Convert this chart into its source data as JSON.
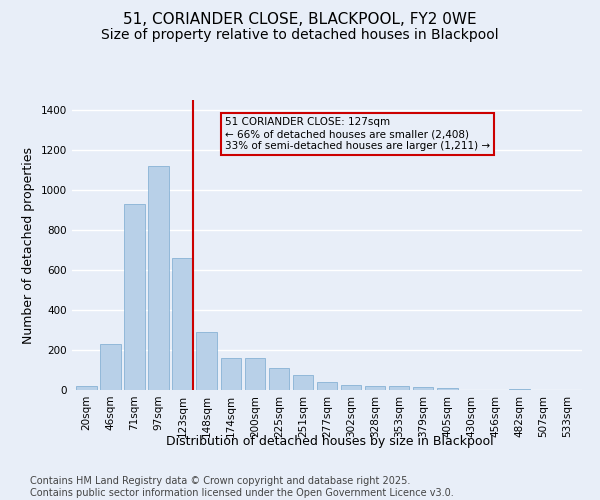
{
  "title": "51, CORIANDER CLOSE, BLACKPOOL, FY2 0WE",
  "subtitle": "Size of property relative to detached houses in Blackpool",
  "xlabel": "Distribution of detached houses by size in Blackpool",
  "ylabel": "Number of detached properties",
  "categories": [
    "20sqm",
    "46sqm",
    "71sqm",
    "97sqm",
    "123sqm",
    "148sqm",
    "174sqm",
    "200sqm",
    "225sqm",
    "251sqm",
    "277sqm",
    "302sqm",
    "328sqm",
    "353sqm",
    "379sqm",
    "405sqm",
    "430sqm",
    "456sqm",
    "482sqm",
    "507sqm",
    "533sqm"
  ],
  "values": [
    20,
    230,
    930,
    1120,
    660,
    290,
    160,
    158,
    110,
    75,
    42,
    26,
    20,
    20,
    14,
    8,
    0,
    0,
    5,
    0,
    0
  ],
  "bar_color": "#b8d0e8",
  "bar_edge_color": "#7aaad0",
  "vline_x": 4.42,
  "vline_color": "#cc0000",
  "annotation_text": "51 CORIANDER CLOSE: 127sqm\n← 66% of detached houses are smaller (2,408)\n33% of semi-detached houses are larger (1,211) →",
  "annotation_box_color": "#cc0000",
  "ylim": [
    0,
    1450
  ],
  "yticks": [
    0,
    200,
    400,
    600,
    800,
    1000,
    1200,
    1400
  ],
  "bg_color": "#e8eef8",
  "grid_color": "#ffffff",
  "footer": "Contains HM Land Registry data © Crown copyright and database right 2025.\nContains public sector information licensed under the Open Government Licence v3.0.",
  "title_fontsize": 11,
  "subtitle_fontsize": 10,
  "label_fontsize": 9,
  "tick_fontsize": 7.5,
  "footer_fontsize": 7
}
